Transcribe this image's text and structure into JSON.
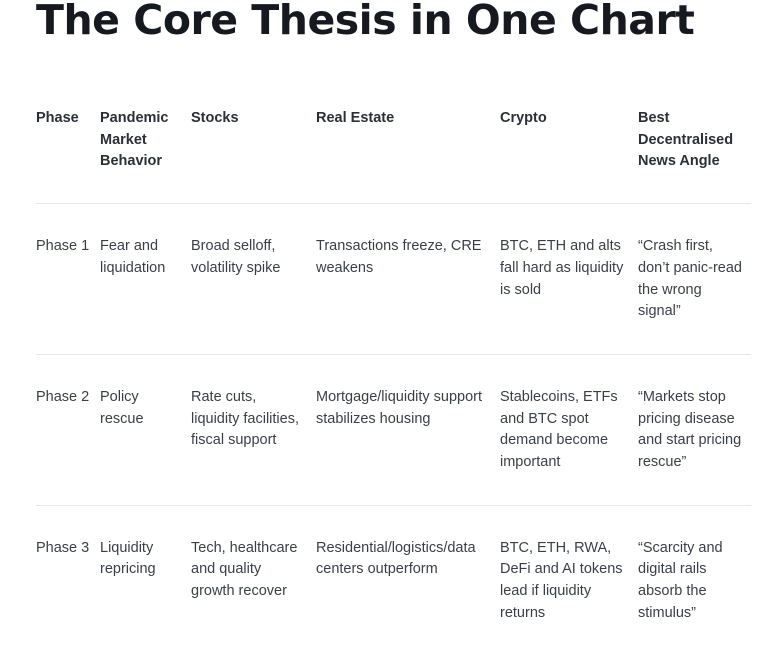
{
  "title": "The Core Thesis in One Chart",
  "table": {
    "headers": [
      "Phase",
      "Pandemic Market Behavior",
      "Stocks",
      "Real Estate",
      "Crypto",
      "Best Decentralised News Angle"
    ],
    "rows": [
      [
        "Phase 1",
        "Fear and liquidation",
        "Broad selloff, volatility spike",
        "Transactions freeze, CRE weakens",
        "BTC, ETH and alts fall hard as liquidity is sold",
        "“Crash first, don’t panic-read the wrong signal”"
      ],
      [
        "Phase 2",
        "Policy rescue",
        "Rate cuts, liquidity facilities, fiscal support",
        "Mortgage/liquidity support stabilizes housing",
        "Stablecoins, ETFs and BTC spot demand become important",
        "“Markets stop pricing disease and start pricing rescue”"
      ],
      [
        "Phase 3",
        "Liquidity repricing",
        "Tech, healthcare and quality growth recover",
        "Residential/logistics/data centers outperform",
        "BTC, ETH, RWA, DeFi and AI tokens lead if liquidity returns",
        "“Scarcity and digital rails absorb the stimulus”"
      ]
    ]
  }
}
